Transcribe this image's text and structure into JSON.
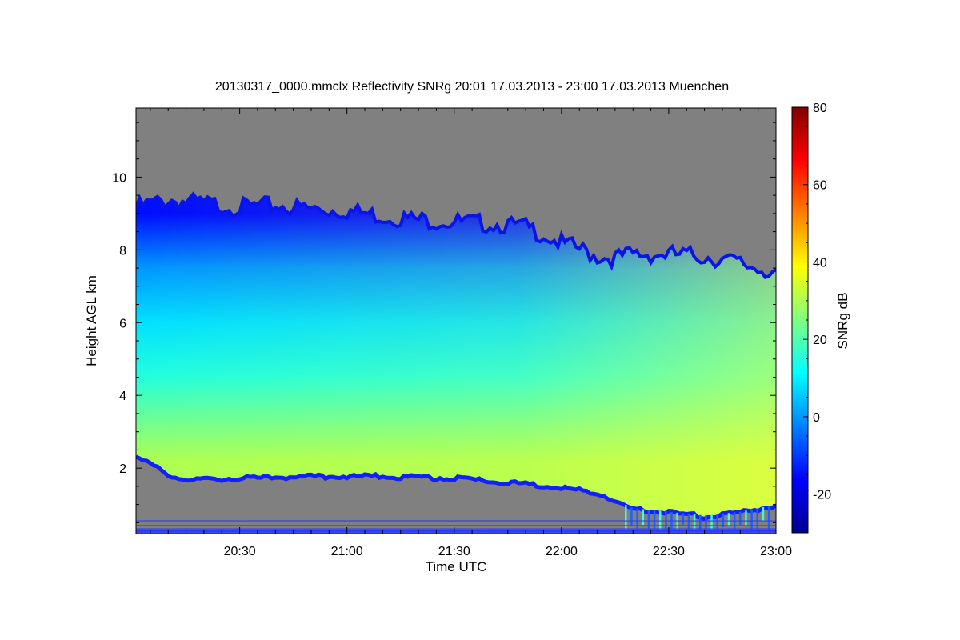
{
  "chart_data": {
    "type": "heatmap",
    "title": "20130317_0000.mmclx Reflectivity SNRg   20:01 17.03.2013 - 23:00 17.03.2013 Muenchen",
    "xlabel": "Time UTC",
    "ylabel": "Height AGL km",
    "colorbar_label": "SNRg dB",
    "xlim": [
      "20:01",
      "23:00"
    ],
    "xlim_minutes": [
      1201,
      1380
    ],
    "ylim": [
      0.2,
      11.9
    ],
    "colorbar_range": [
      -30,
      80
    ],
    "x_ticks": [
      {
        "label": "20:30",
        "minutes": 1230
      },
      {
        "label": "21:00",
        "minutes": 1260
      },
      {
        "label": "21:30",
        "minutes": 1290
      },
      {
        "label": "22:00",
        "minutes": 1320
      },
      {
        "label": "22:30",
        "minutes": 1350
      },
      {
        "label": "23:00",
        "minutes": 1380
      }
    ],
    "y_ticks": [
      {
        "label": "2",
        "value": 2
      },
      {
        "label": "4",
        "value": 4
      },
      {
        "label": "6",
        "value": 6
      },
      {
        "label": "8",
        "value": 8
      },
      {
        "label": "10",
        "value": 10
      }
    ],
    "colorbar_ticks": [
      {
        "label": "-20",
        "value": -20
      },
      {
        "label": "0",
        "value": 0
      },
      {
        "label": "20",
        "value": 20
      },
      {
        "label": "40",
        "value": 40
      },
      {
        "label": "60",
        "value": 60
      },
      {
        "label": "80",
        "value": 80
      }
    ],
    "colors": {
      "no_signal": "#808080",
      "colormap": [
        "#00008f",
        "#0000ff",
        "#0080ff",
        "#00ffff",
        "#80ff80",
        "#ffff00",
        "#ff8000",
        "#ff0000",
        "#800000"
      ]
    },
    "cloud_top_km": [
      [
        1201,
        9.3
      ],
      [
        1210,
        9.5
      ],
      [
        1220,
        9.4
      ],
      [
        1230,
        9.3
      ],
      [
        1240,
        9.35
      ],
      [
        1250,
        9.25
      ],
      [
        1260,
        9.2
      ],
      [
        1270,
        9.05
      ],
      [
        1280,
        8.95
      ],
      [
        1290,
        8.9
      ],
      [
        1300,
        8.85
      ],
      [
        1310,
        8.75
      ],
      [
        1315,
        8.55
      ],
      [
        1320,
        8.3
      ],
      [
        1325,
        8.15
      ],
      [
        1330,
        7.95
      ],
      [
        1335,
        7.9
      ],
      [
        1340,
        8.0
      ],
      [
        1350,
        8.0
      ],
      [
        1360,
        7.95
      ],
      [
        1370,
        7.75
      ],
      [
        1380,
        7.5
      ]
    ],
    "cloud_base_km": [
      [
        1201,
        2.35
      ],
      [
        1210,
        1.85
      ],
      [
        1215,
        1.7
      ],
      [
        1230,
        1.75
      ],
      [
        1250,
        1.8
      ],
      [
        1270,
        1.8
      ],
      [
        1290,
        1.75
      ],
      [
        1310,
        1.6
      ],
      [
        1320,
        1.5
      ],
      [
        1330,
        1.35
      ],
      [
        1340,
        0.9
      ],
      [
        1350,
        0.8
      ],
      [
        1360,
        0.7
      ],
      [
        1370,
        0.8
      ],
      [
        1380,
        1.0
      ]
    ],
    "snr_profile_db": [
      {
        "height_km": 2.2,
        "snr_db": 30
      },
      {
        "height_km": 3.0,
        "snr_db": 25
      },
      {
        "height_km": 4.5,
        "snr_db": 15
      },
      {
        "height_km": 6.0,
        "snr_db": 8
      },
      {
        "height_km": 7.5,
        "snr_db": 0
      },
      {
        "height_km": 9.0,
        "snr_db": -15
      }
    ],
    "grid": false,
    "legend": "colorbar-right"
  }
}
